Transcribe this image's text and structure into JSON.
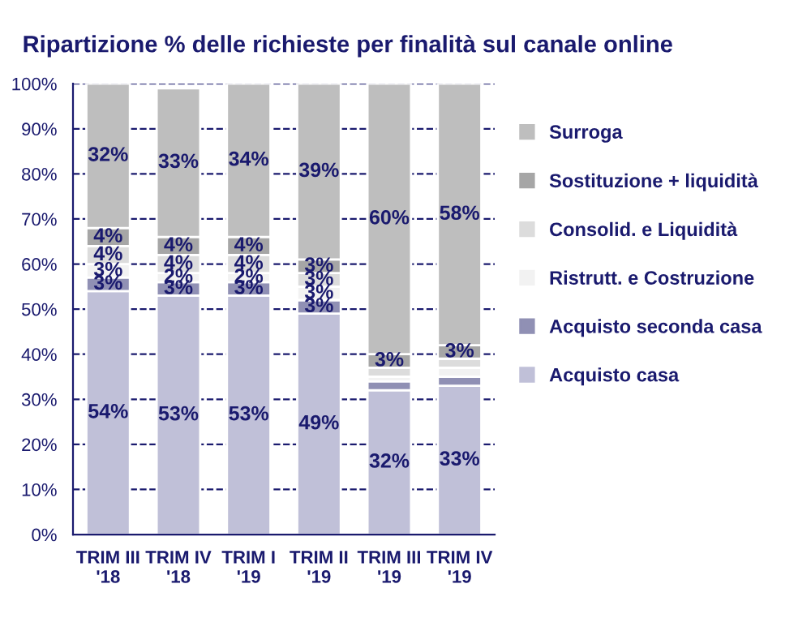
{
  "chart_data": {
    "type": "bar",
    "stacked": true,
    "title": "Ripartizione % delle richieste per finalità sul canale online",
    "categories": [
      "TRIM III\n'18",
      "TRIM IV\n'18",
      "TRIM I\n'19",
      "TRIM II\n'19",
      "TRIM III\n'19",
      "TRIM IV\n'19"
    ],
    "series": [
      {
        "name": "Acquisto casa",
        "color": "#c0c0d8",
        "values": [
          54,
          53,
          53,
          49,
          32,
          33
        ],
        "value_labels": [
          "54%",
          "53%",
          "53%",
          "49%",
          "32%",
          "33%"
        ]
      },
      {
        "name": "Acquisto seconda casa",
        "color": "#9090b4",
        "values": [
          3,
          3,
          3,
          3,
          2,
          2
        ],
        "value_labels": [
          "3%",
          "3%",
          "3%",
          "3%",
          null,
          null
        ]
      },
      {
        "name": "Ristrutt. e Costruzione",
        "color": "#f2f2f2",
        "values": [
          3,
          2,
          2,
          3,
          1,
          2
        ],
        "value_labels": [
          "3%",
          "2%",
          "2%",
          "3%",
          null,
          null
        ]
      },
      {
        "name": "Consolid. e Liquidità",
        "color": "#dcdcdc",
        "values": [
          4,
          4,
          4,
          3,
          2,
          2
        ],
        "value_labels": [
          "4%",
          "4%",
          "4%",
          "3%",
          null,
          null
        ]
      },
      {
        "name": "Sostituzione + liquidità",
        "color": "#a6a6a6",
        "values": [
          4,
          4,
          4,
          3,
          3,
          3
        ],
        "value_labels": [
          "4%",
          "4%",
          "4%",
          "3%",
          "3%",
          "3%"
        ]
      },
      {
        "name": "Surroga",
        "color": "#bebebe",
        "values": [
          32,
          33,
          34,
          39,
          60,
          58
        ],
        "value_labels": [
          "32%",
          "33%",
          "34%",
          "39%",
          "60%",
          "58%"
        ]
      }
    ],
    "ylim": [
      0,
      100
    ],
    "yticks": [
      {
        "value": 0,
        "label": "0%"
      },
      {
        "value": 10,
        "label": "10%"
      },
      {
        "value": 20,
        "label": "20%"
      },
      {
        "value": 30,
        "label": "30%"
      },
      {
        "value": 40,
        "label": "40%"
      },
      {
        "value": 50,
        "label": "50%"
      },
      {
        "value": 60,
        "label": "60%"
      },
      {
        "value": 70,
        "label": "70%"
      },
      {
        "value": 80,
        "label": "80%"
      },
      {
        "value": 90,
        "label": "90%"
      },
      {
        "value": 100,
        "label": "100%"
      }
    ],
    "grid": "y",
    "legend": "right"
  }
}
